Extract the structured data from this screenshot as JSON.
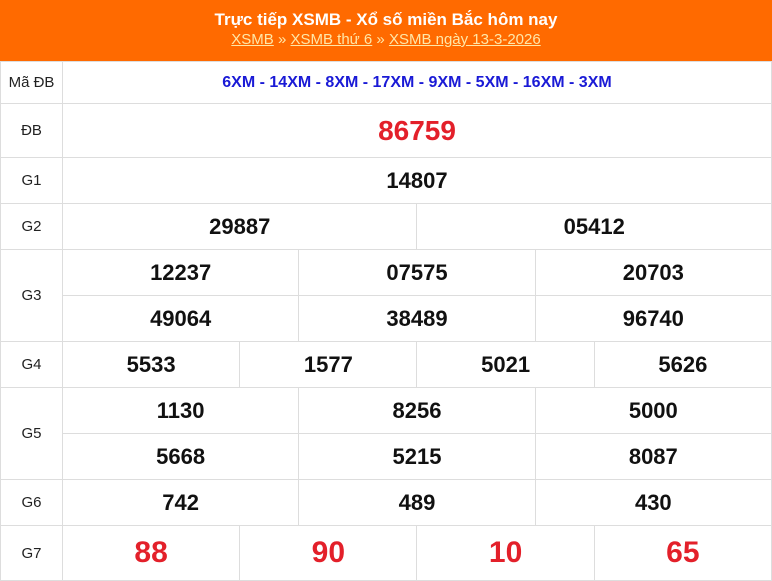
{
  "header": {
    "title": "Trực tiếp XSMB - Xổ số miền Bắc hôm nay",
    "breadcrumb": [
      "XSMB",
      "XSMB thứ 6",
      "XSMB ngày 13-3-2026"
    ],
    "separator": "»"
  },
  "colors": {
    "header_bg": "#ff6a00",
    "special_red": "#e3202a",
    "code_blue": "#1a1ad6"
  },
  "rows": {
    "ma_db": {
      "label": "Mã ĐB",
      "value": "6XM - 14XM - 8XM - 17XM - 9XM - 5XM - 16XM - 3XM"
    },
    "db": {
      "label": "ĐB",
      "values": [
        "86759"
      ]
    },
    "g1": {
      "label": "G1",
      "values": [
        "14807"
      ]
    },
    "g2": {
      "label": "G2",
      "values": [
        "29887",
        "05412"
      ]
    },
    "g3": {
      "label": "G3",
      "values": [
        "12237",
        "07575",
        "20703",
        "49064",
        "38489",
        "96740"
      ]
    },
    "g4": {
      "label": "G4",
      "values": [
        "5533",
        "1577",
        "5021",
        "5626"
      ]
    },
    "g5": {
      "label": "G5",
      "values": [
        "1130",
        "8256",
        "5000",
        "5668",
        "5215",
        "8087"
      ]
    },
    "g6": {
      "label": "G6",
      "values": [
        "742",
        "489",
        "430"
      ]
    },
    "g7": {
      "label": "G7",
      "values": [
        "88",
        "90",
        "10",
        "65"
      ]
    }
  }
}
